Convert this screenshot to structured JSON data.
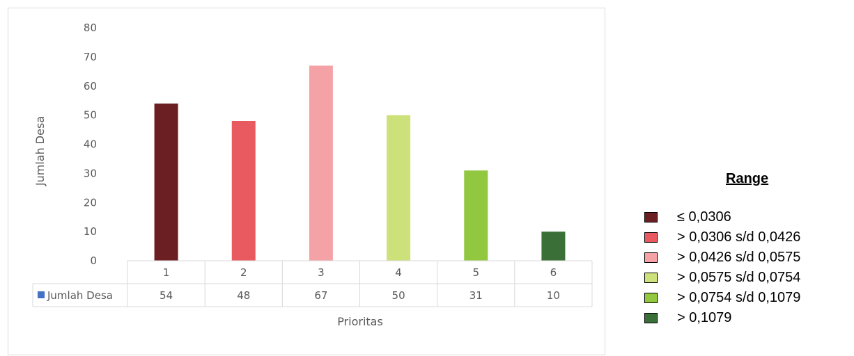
{
  "chart_data": {
    "type": "bar",
    "categories": [
      "1",
      "2",
      "3",
      "4",
      "5",
      "6"
    ],
    "values": [
      54,
      48,
      67,
      50,
      31,
      10
    ],
    "bar_colors": [
      "#6b1f22",
      "#e85a60",
      "#f4a2a6",
      "#cde17a",
      "#92c840",
      "#3a7038"
    ],
    "title": "",
    "xlabel": "Prioritas",
    "ylabel": "Jumlah Desa",
    "ylim": [
      0,
      80
    ],
    "yticks": [
      "0",
      "10",
      "20",
      "30",
      "40",
      "50",
      "60",
      "70",
      "80"
    ],
    "data_table": {
      "row_label": "Jumlah Desa",
      "marker_color": "#4472c4",
      "values": [
        "54",
        "48",
        "67",
        "50",
        "31",
        "10"
      ]
    },
    "grid": false
  },
  "legend": {
    "title": "Range",
    "items": [
      {
        "label": "≤ 0,0306",
        "color": "#6b1f22"
      },
      {
        "label": "> 0,0306 s/d 0,0426",
        "color": "#e85a60"
      },
      {
        "label": "> 0,0426 s/d 0,0575",
        "color": "#f4a2a6"
      },
      {
        "label": "> 0,0575 s/d 0,0754",
        "color": "#cde17a"
      },
      {
        "label": "> 0,0754 s/d 0,1079",
        "color": "#92c840"
      },
      {
        "label": "> 0,1079",
        "color": "#3a7038"
      }
    ]
  }
}
